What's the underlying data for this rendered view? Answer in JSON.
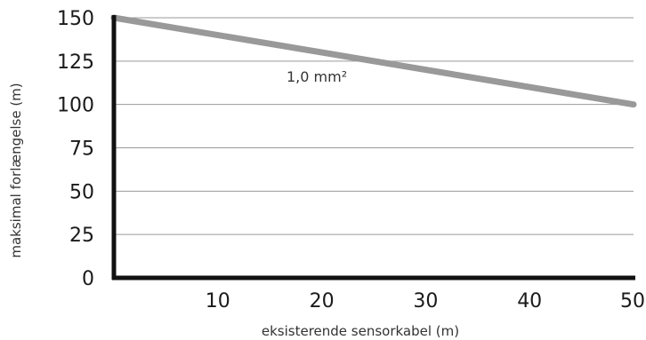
{
  "chart_data": {
    "type": "line",
    "xlabel": "eksisterende sensorkabel (m)",
    "ylabel": "maksimal forlængelse (m)",
    "xlim": [
      0,
      50
    ],
    "ylim": [
      0,
      150
    ],
    "x_ticks": [
      10,
      20,
      30,
      40,
      50
    ],
    "y_ticks": [
      0,
      25,
      50,
      75,
      100,
      125,
      150
    ],
    "grid": "horizontal",
    "series": [
      {
        "name": "1,0 mm²",
        "color": "#999999",
        "x": [
          0,
          50
        ],
        "y": [
          150,
          100
        ]
      }
    ]
  }
}
